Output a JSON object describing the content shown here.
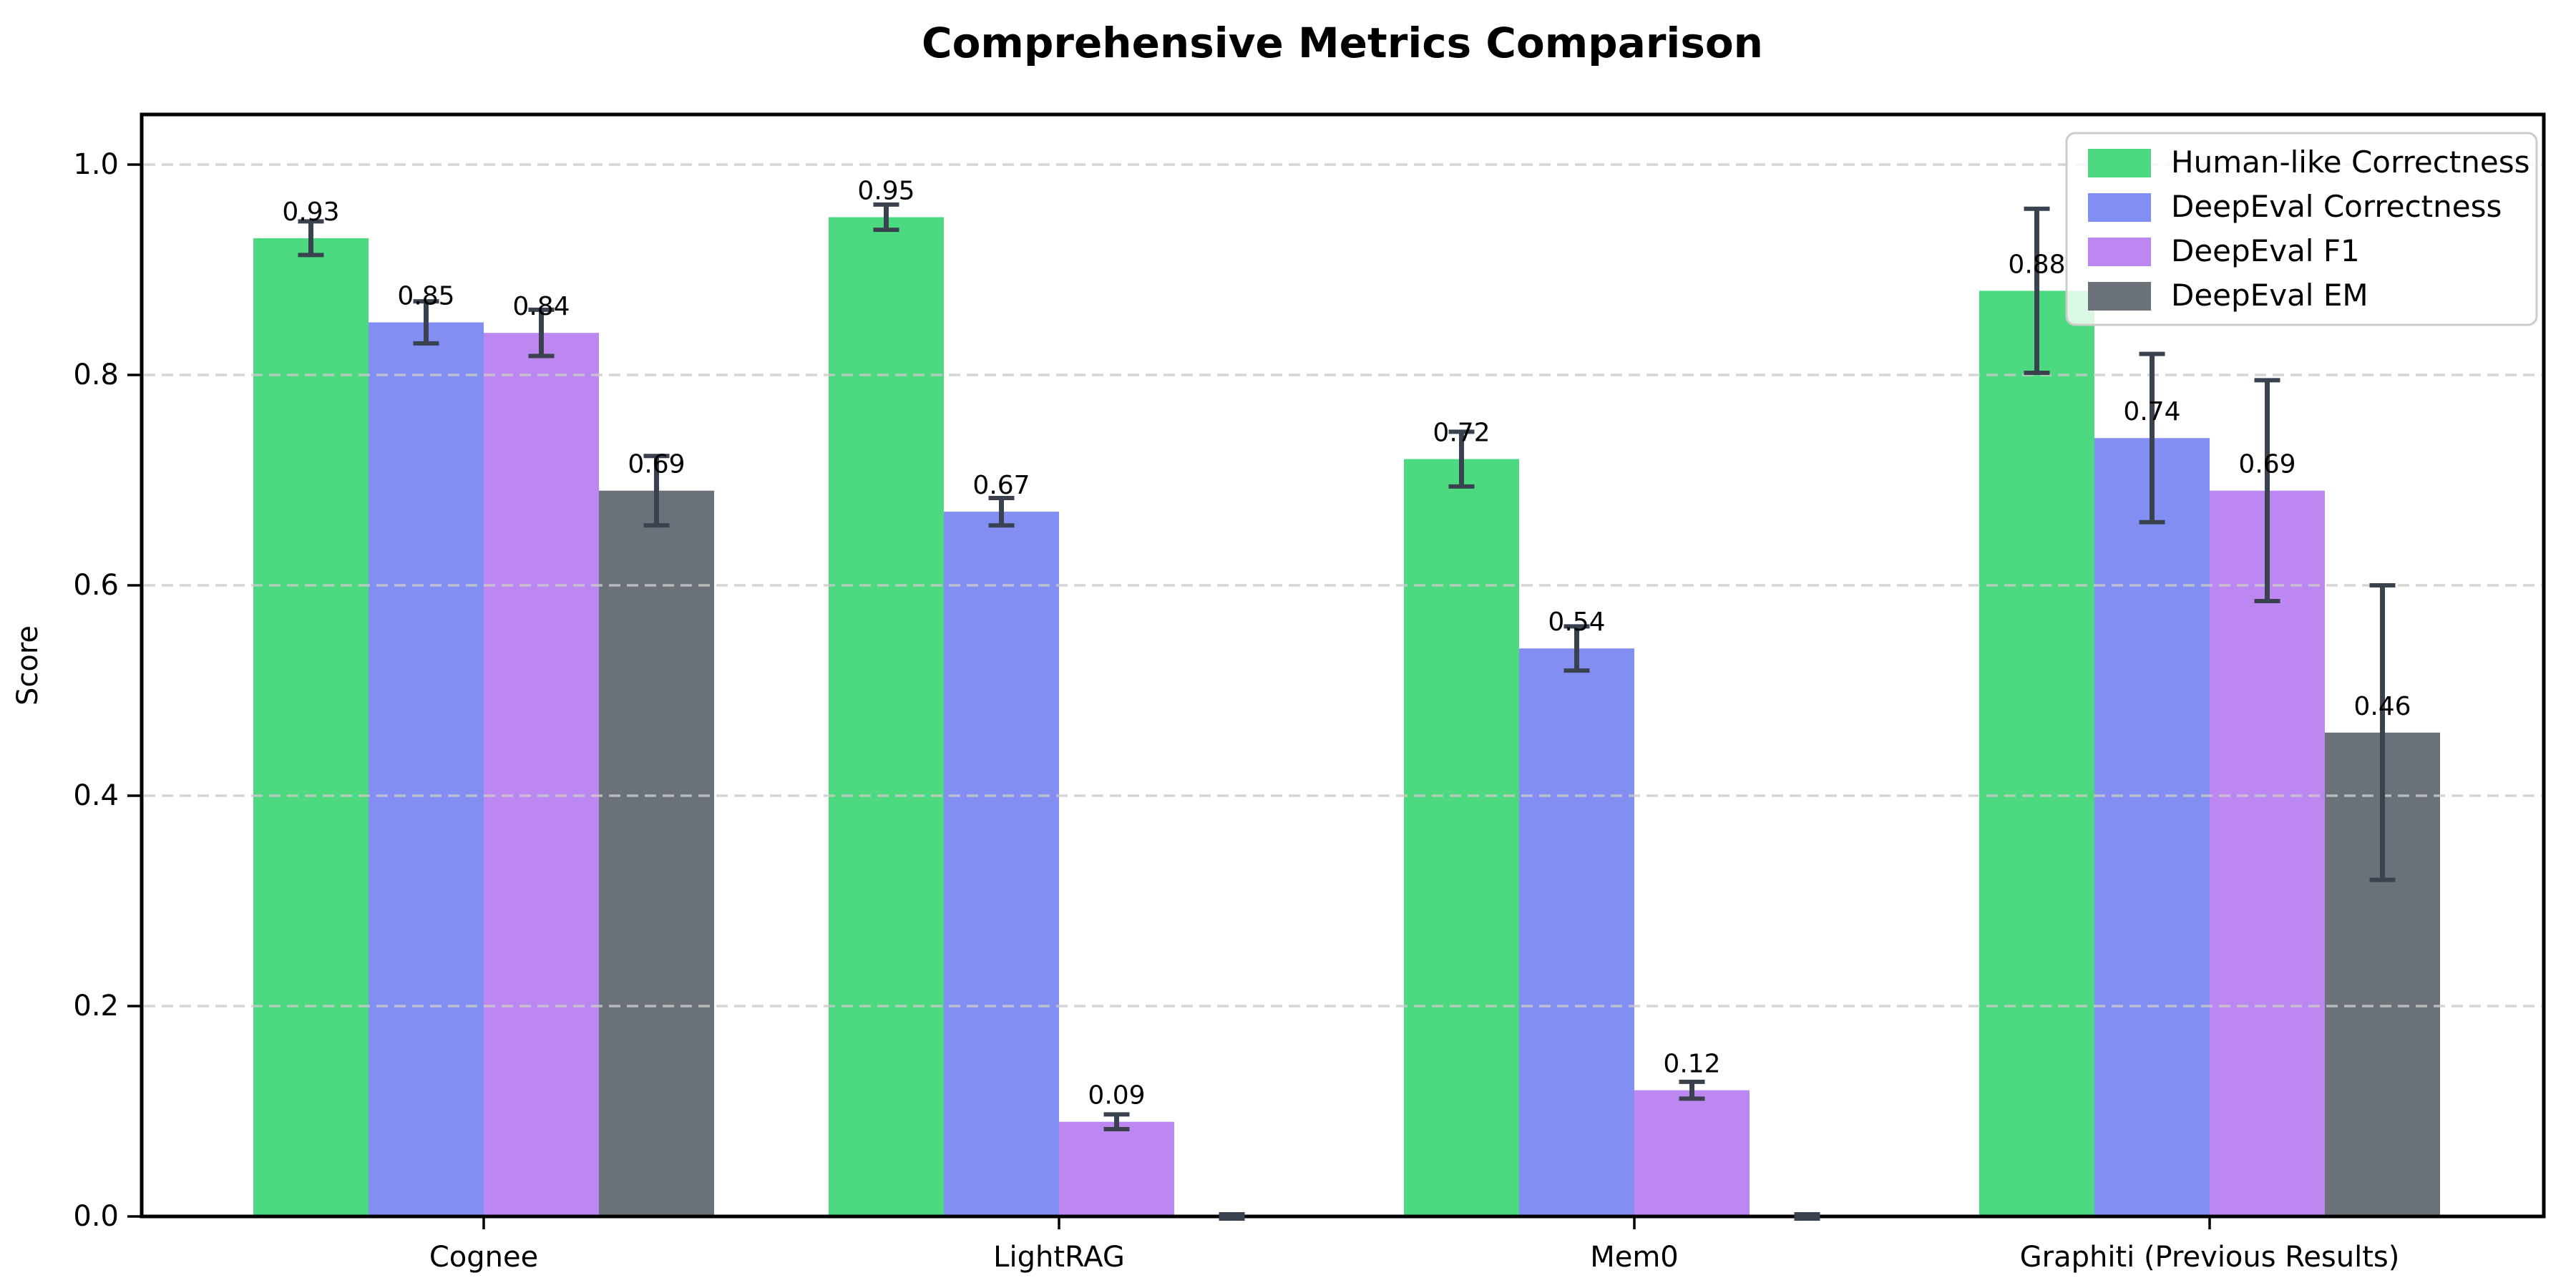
{
  "chart_data": {
    "type": "bar",
    "title": "Comprehensive Metrics Comparison",
    "xlabel": "",
    "ylabel": "Score",
    "categories": [
      "Cognee",
      "LightRAG",
      "Mem0",
      "Graphiti (Previous Results)"
    ],
    "series": [
      {
        "name": "Human-like Correctness",
        "color": "#4cd97f",
        "values": [
          0.93,
          0.95,
          0.72,
          0.88
        ],
        "errors": [
          0.016,
          0.012,
          0.026,
          0.078
        ],
        "labels": [
          "0.93",
          "0.95",
          "0.72",
          "0.88"
        ]
      },
      {
        "name": "DeepEval Correctness",
        "color": "#828ef2",
        "values": [
          0.85,
          0.67,
          0.54,
          0.74
        ],
        "errors": [
          0.02,
          0.013,
          0.021,
          0.08
        ],
        "labels": [
          "0.85",
          "0.67",
          "0.54",
          "0.74"
        ]
      },
      {
        "name": "DeepEval F1",
        "color": "#bd87f2",
        "values": [
          0.84,
          0.09,
          0.12,
          0.69
        ],
        "errors": [
          0.022,
          0.007,
          0.008,
          0.105
        ],
        "labels": [
          "0.84",
          "0.09",
          "0.12",
          "0.69"
        ]
      },
      {
        "name": "DeepEval EM",
        "color": "#6a7178",
        "values": [
          0.69,
          0.0,
          0.0,
          0.46
        ],
        "errors": [
          0.033,
          0.002,
          0.002,
          0.14
        ],
        "labels": [
          "0.69",
          "",
          "",
          "0.46"
        ]
      }
    ],
    "yticks": [
      "0.0",
      "0.2",
      "0.4",
      "0.6",
      "0.8",
      "1.0"
    ],
    "ytick_values": [
      0.0,
      0.2,
      0.4,
      0.6,
      0.8,
      1.0
    ],
    "ylim": [
      0,
      1.048
    ],
    "grid": {
      "axis": "y",
      "style": "dashed",
      "color": "#cbcbcb"
    },
    "legend": {
      "position": "upper right"
    },
    "colors": {
      "errorbar": "#3a4250",
      "frame": "#000000",
      "grid": "#cbcbcb",
      "legend_border": "#cccccc",
      "background": "#ffffff"
    }
  }
}
